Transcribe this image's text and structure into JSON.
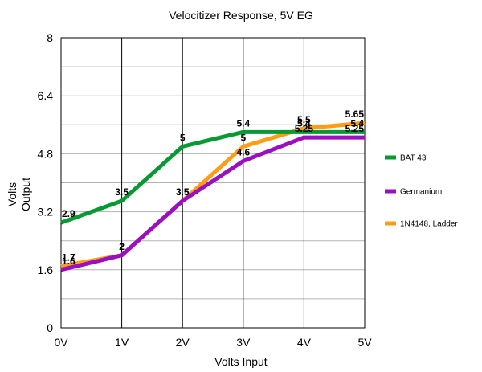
{
  "chart_data": {
    "type": "line",
    "title": "Velocitizer Response, 5V EG",
    "xlabel": "Volts Input",
    "ylabel_lines": [
      "Volts",
      "Output"
    ],
    "categories": [
      "0V",
      "1V",
      "2V",
      "3V",
      "4V",
      "5V"
    ],
    "ylim": [
      0,
      8
    ],
    "yticks": [
      "0",
      "1.6",
      "3.2",
      "4.8",
      "6.4",
      "8"
    ],
    "grid": true,
    "legend_position": "right",
    "series": [
      {
        "name": "BAT 43",
        "color": "#079a33",
        "values": [
          2.9,
          3.5,
          5,
          5.4,
          5.4,
          5.4
        ],
        "labels": [
          "2.9",
          "3.5",
          "5",
          "5.4",
          "5.4",
          "5.4"
        ]
      },
      {
        "name": "Germanium",
        "color": "#9b0fc2",
        "values": [
          1.6,
          2,
          3.5,
          4.6,
          5.25,
          5.25
        ],
        "labels": [
          "1.6",
          "2",
          "3.5",
          "4.6",
          "5.25",
          "5.25"
        ]
      },
      {
        "name": "1N4148, Ladder",
        "color": "#ff9d17",
        "values": [
          1.7,
          2,
          3.5,
          5,
          5.5,
          5.65
        ],
        "labels": [
          "1.7",
          "2",
          "3.5",
          "5",
          "5.5",
          "5.65"
        ]
      }
    ]
  }
}
